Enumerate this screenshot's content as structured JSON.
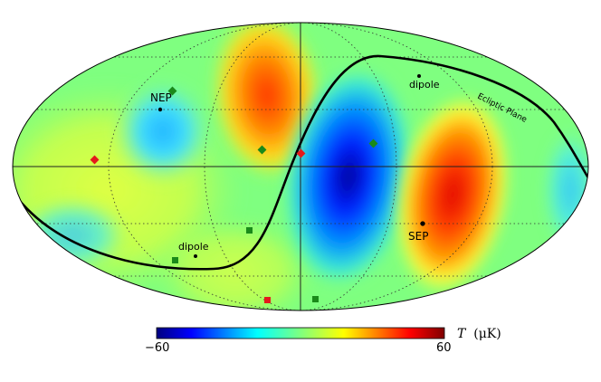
{
  "colorbar": {
    "min_label": "−60",
    "max_label": "60",
    "symbol": "T",
    "unit": "(μK)",
    "range": [
      -60,
      60
    ],
    "colormap": "jet"
  },
  "labels": {
    "nep": "NEP",
    "sep": "SEP",
    "dipole_north": "dipole",
    "dipole_south": "dipole",
    "ecliptic": "Ecliptic Plane"
  },
  "projection": "mollweide",
  "graticule": "dotted",
  "marker_colors": {
    "green": "#1a8a1a",
    "red": "#e41a1c",
    "black": "#000000"
  }
}
